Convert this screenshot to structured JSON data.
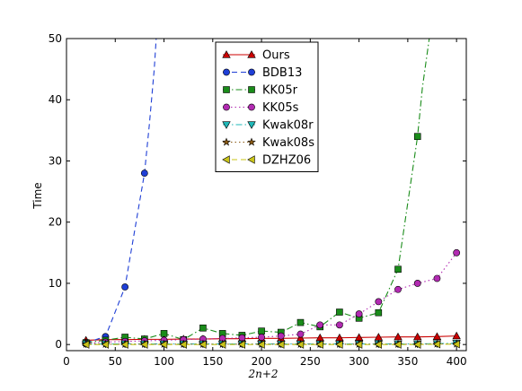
{
  "chart_data": {
    "type": "line",
    "title": "",
    "xlabel": "2n+2",
    "ylabel": "Time",
    "xlim": [
      0,
      410
    ],
    "ylim": [
      -1,
      50
    ],
    "xticks": [
      0,
      50,
      100,
      150,
      200,
      250,
      300,
      350,
      400
    ],
    "yticks": [
      0,
      10,
      20,
      30,
      40,
      50
    ],
    "grid": false,
    "legend_position": "top-center",
    "series": [
      {
        "name": "Ours",
        "color": "#cc0000",
        "linestyle": "solid",
        "marker": "triangle-up",
        "x": [
          20,
          40,
          60,
          80,
          100,
          120,
          140,
          160,
          180,
          200,
          220,
          240,
          260,
          280,
          300,
          320,
          340,
          360,
          380,
          400
        ],
        "y": [
          0.7,
          0.8,
          0.8,
          0.85,
          0.85,
          0.9,
          0.9,
          0.95,
          0.95,
          1.0,
          1.0,
          1.05,
          1.1,
          1.1,
          1.15,
          1.2,
          1.25,
          1.25,
          1.3,
          1.4
        ]
      },
      {
        "name": "BDB13",
        "color": "#1f3fd6",
        "linestyle": "dashed",
        "marker": "circle",
        "x": [
          20,
          40,
          60,
          80
        ],
        "y": [
          0.3,
          1.3,
          9.4,
          28.0
        ],
        "extension": {
          "x": [
            80,
            85,
            90,
            92
          ],
          "y": [
            28.0,
            36.0,
            45.0,
            50.0
          ]
        }
      },
      {
        "name": "KK05r",
        "color": "#1a8c1a",
        "linestyle": "dashdot",
        "marker": "square",
        "x": [
          20,
          40,
          60,
          80,
          100,
          120,
          140,
          160,
          180,
          200,
          220,
          240,
          260,
          280,
          300,
          320,
          340,
          360
        ],
        "y": [
          0.3,
          0.7,
          1.2,
          0.9,
          1.8,
          0.8,
          2.7,
          1.8,
          1.5,
          2.2,
          2.0,
          3.6,
          2.9,
          5.3,
          4.3,
          5.2,
          12.3,
          34.0
        ],
        "extension": {
          "x": [
            360,
            365,
            372
          ],
          "y": [
            34.0,
            42.0,
            50.0
          ]
        }
      },
      {
        "name": "KK05s",
        "color": "#b22ab2",
        "linestyle": "dotted",
        "marker": "circle",
        "x": [
          20,
          40,
          60,
          80,
          100,
          120,
          140,
          160,
          180,
          200,
          220,
          240,
          260,
          280,
          300,
          320,
          340,
          360,
          380,
          400
        ],
        "y": [
          0.2,
          0.4,
          0.5,
          0.6,
          0.7,
          0.8,
          0.9,
          1.0,
          1.1,
          1.2,
          1.4,
          1.7,
          3.2,
          3.2,
          5.0,
          7.0,
          9.0,
          10.0,
          10.8,
          15.0
        ]
      },
      {
        "name": "Kwak08r",
        "color": "#1fb8b8",
        "linestyle": "dashdot",
        "marker": "triangle-down",
        "x": [
          20,
          40,
          60,
          80,
          100,
          120,
          140,
          160,
          180,
          200,
          220,
          240,
          260,
          280,
          300,
          320,
          340,
          360,
          380,
          400
        ],
        "y": [
          0.1,
          0.1,
          0.1,
          0.1,
          0.1,
          0.1,
          0.1,
          0.1,
          0.1,
          0.1,
          0.1,
          0.1,
          0.1,
          0.1,
          0.1,
          0.1,
          0.1,
          0.1,
          0.15,
          0.2
        ]
      },
      {
        "name": "Kwak08s",
        "color": "#8a5a14",
        "linestyle": "dotted",
        "marker": "star",
        "x": [
          20,
          40,
          60,
          80,
          100,
          120,
          140,
          160,
          180,
          200,
          220,
          240,
          260,
          280,
          300,
          320,
          340,
          360,
          380,
          400
        ],
        "y": [
          0.05,
          0.05,
          0.05,
          0.05,
          0.05,
          0.05,
          0.05,
          0.05,
          0.05,
          0.05,
          0.05,
          0.05,
          0.05,
          0.05,
          0.05,
          0.05,
          0.05,
          0.05,
          0.1,
          0.1
        ]
      },
      {
        "name": "DZHZ06",
        "color": "#c9c41a",
        "linestyle": "dashed",
        "marker": "triangle-left",
        "x": [
          20,
          40,
          60,
          80,
          100,
          120,
          140,
          160,
          180,
          200,
          220,
          240,
          260,
          280,
          300,
          320,
          340,
          360,
          380,
          400
        ],
        "y": [
          0.0,
          0.0,
          0.0,
          0.0,
          0.0,
          0.0,
          0.0,
          0.0,
          0.0,
          0.0,
          0.0,
          0.0,
          0.0,
          0.0,
          0.0,
          0.0,
          0.0,
          0.0,
          0.05,
          0.05
        ]
      }
    ]
  }
}
